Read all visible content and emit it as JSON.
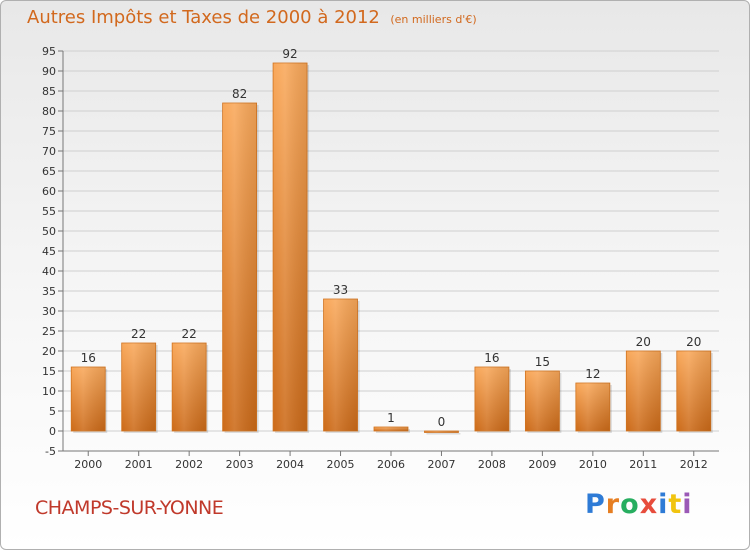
{
  "chart_data": {
    "type": "bar",
    "title": "Autres Impôts et Taxes de 2000 à 2012",
    "subtitle": "(en milliers d'€)",
    "xlabel": "",
    "ylabel": "",
    "categories": [
      "2000",
      "2001",
      "2002",
      "2003",
      "2004",
      "2005",
      "2006",
      "2007",
      "2008",
      "2009",
      "2010",
      "2011",
      "2012"
    ],
    "values": [
      16,
      22,
      22,
      82,
      92,
      33,
      1,
      0,
      16,
      15,
      12,
      20,
      20
    ],
    "data_labels": [
      "16",
      "22",
      "22",
      "82",
      "92",
      "33",
      "1",
      "0",
      "16",
      "15",
      "12",
      "20",
      "20"
    ],
    "ylim": [
      -5,
      95
    ],
    "yticks": [
      -5,
      0,
      5,
      10,
      15,
      20,
      25,
      30,
      35,
      40,
      45,
      50,
      55,
      60,
      65,
      70,
      75,
      80,
      85,
      90,
      95
    ],
    "grid": true,
    "legend": "none",
    "bar_color": "#e8832a"
  },
  "location": "CHAMPS-SUR-YONNE",
  "brand": {
    "letters": [
      "P",
      "r",
      "o",
      "x",
      "i",
      "t",
      "i"
    ]
  }
}
